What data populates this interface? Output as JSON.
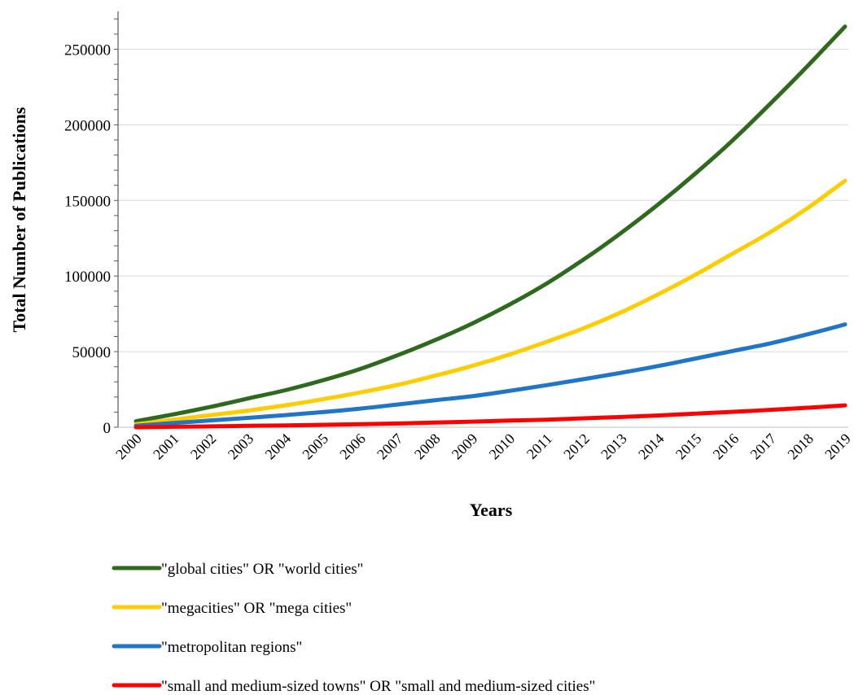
{
  "chart_data": {
    "type": "line",
    "title": "",
    "xlabel": "Years",
    "ylabel": "Total Number of Publications",
    "ylim": [
      0,
      275000
    ],
    "y_ticks": [
      "0",
      "50000",
      "100000",
      "150000",
      "200000",
      "250000"
    ],
    "grid": true,
    "legend_position": "bottom",
    "categories": [
      "2000",
      "2001",
      "2002",
      "2003",
      "2004",
      "2005",
      "2006",
      "2007",
      "2008",
      "2009",
      "2010",
      "2011",
      "2012",
      "2013",
      "2014",
      "2015",
      "2016",
      "2017",
      "2018",
      "2019"
    ],
    "series": [
      {
        "name": "\"global cities\" OR \"world cities\"",
        "color": "#2e6a1e",
        "values": [
          4000,
          8500,
          13500,
          19000,
          24500,
          31000,
          38500,
          47500,
          57500,
          68500,
          81000,
          95000,
          111000,
          128500,
          147500,
          168000,
          190000,
          214000,
          239000,
          265000
        ]
      },
      {
        "name": "\"megacities\" OR \"mega cities\"",
        "color": "#ffcc00",
        "values": [
          2000,
          5000,
          8000,
          11000,
          14500,
          18500,
          23000,
          28000,
          34000,
          40500,
          48000,
          56500,
          65500,
          76000,
          88000,
          101000,
          115000,
          129000,
          145000,
          163000
        ]
      },
      {
        "name": "\"metropolitan regions\"",
        "color": "#1f75c8",
        "values": [
          1000,
          2800,
          4500,
          6200,
          8000,
          10000,
          12300,
          15000,
          17800,
          20500,
          24000,
          27800,
          31800,
          36000,
          40500,
          45500,
          50500,
          55500,
          61500,
          68000
        ]
      },
      {
        "name": "\"small and medium-sized towns\" OR \"small and medium-sized cities\"",
        "color": "#ff0000",
        "values": [
          0,
          300,
          600,
          900,
          1200,
          1600,
          2000,
          2500,
          3100,
          3700,
          4400,
          5000,
          5900,
          6800,
          7800,
          9000,
          10200,
          11500,
          12900,
          14500
        ]
      }
    ]
  }
}
